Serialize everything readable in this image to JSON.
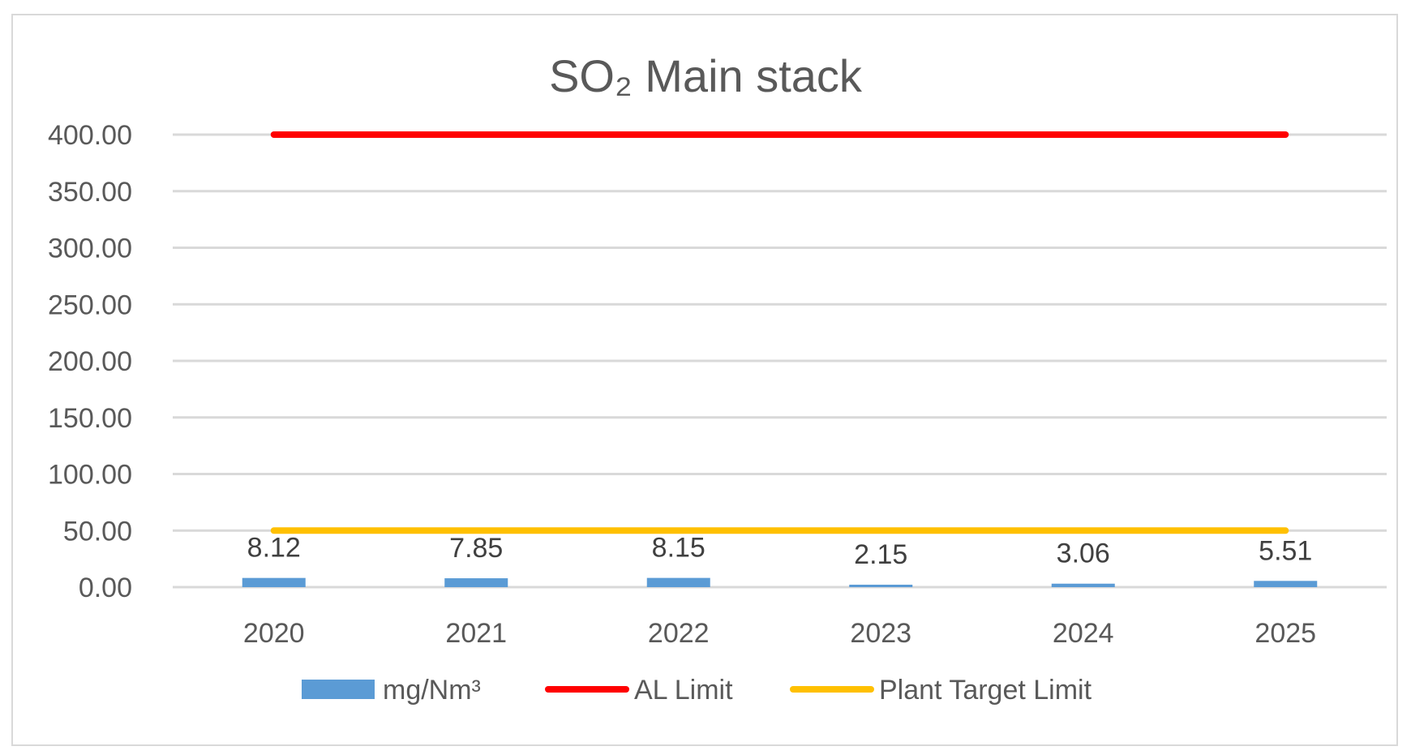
{
  "chart_data": {
    "type": "bar",
    "title": "SO₂ Main stack",
    "categories": [
      "2020",
      "2021",
      "2022",
      "2023",
      "2024",
      "2025"
    ],
    "series": [
      {
        "name": "mg/Nm³",
        "kind": "bar",
        "values": [
          8.12,
          7.85,
          8.15,
          2.15,
          3.06,
          5.51
        ],
        "color": "#5b9bd5",
        "data_labels": [
          "8.12",
          "7.85",
          "8.15",
          "2.15",
          "3.06",
          "5.51"
        ]
      },
      {
        "name": "AL Limit",
        "kind": "line",
        "values": [
          400,
          400,
          400,
          400,
          400,
          400
        ],
        "color": "#ff0000"
      },
      {
        "name": "Plant Target Limit",
        "kind": "line",
        "values": [
          50,
          50,
          50,
          50,
          50,
          50
        ],
        "color": "#ffc000"
      }
    ],
    "yticks": [
      "0.00",
      "50.00",
      "100.00",
      "150.00",
      "200.00",
      "250.00",
      "300.00",
      "350.00",
      "400.00"
    ],
    "ylim": [
      0,
      400
    ],
    "xlabel": "",
    "ylabel": "",
    "grid": true,
    "legend_position": "bottom"
  }
}
